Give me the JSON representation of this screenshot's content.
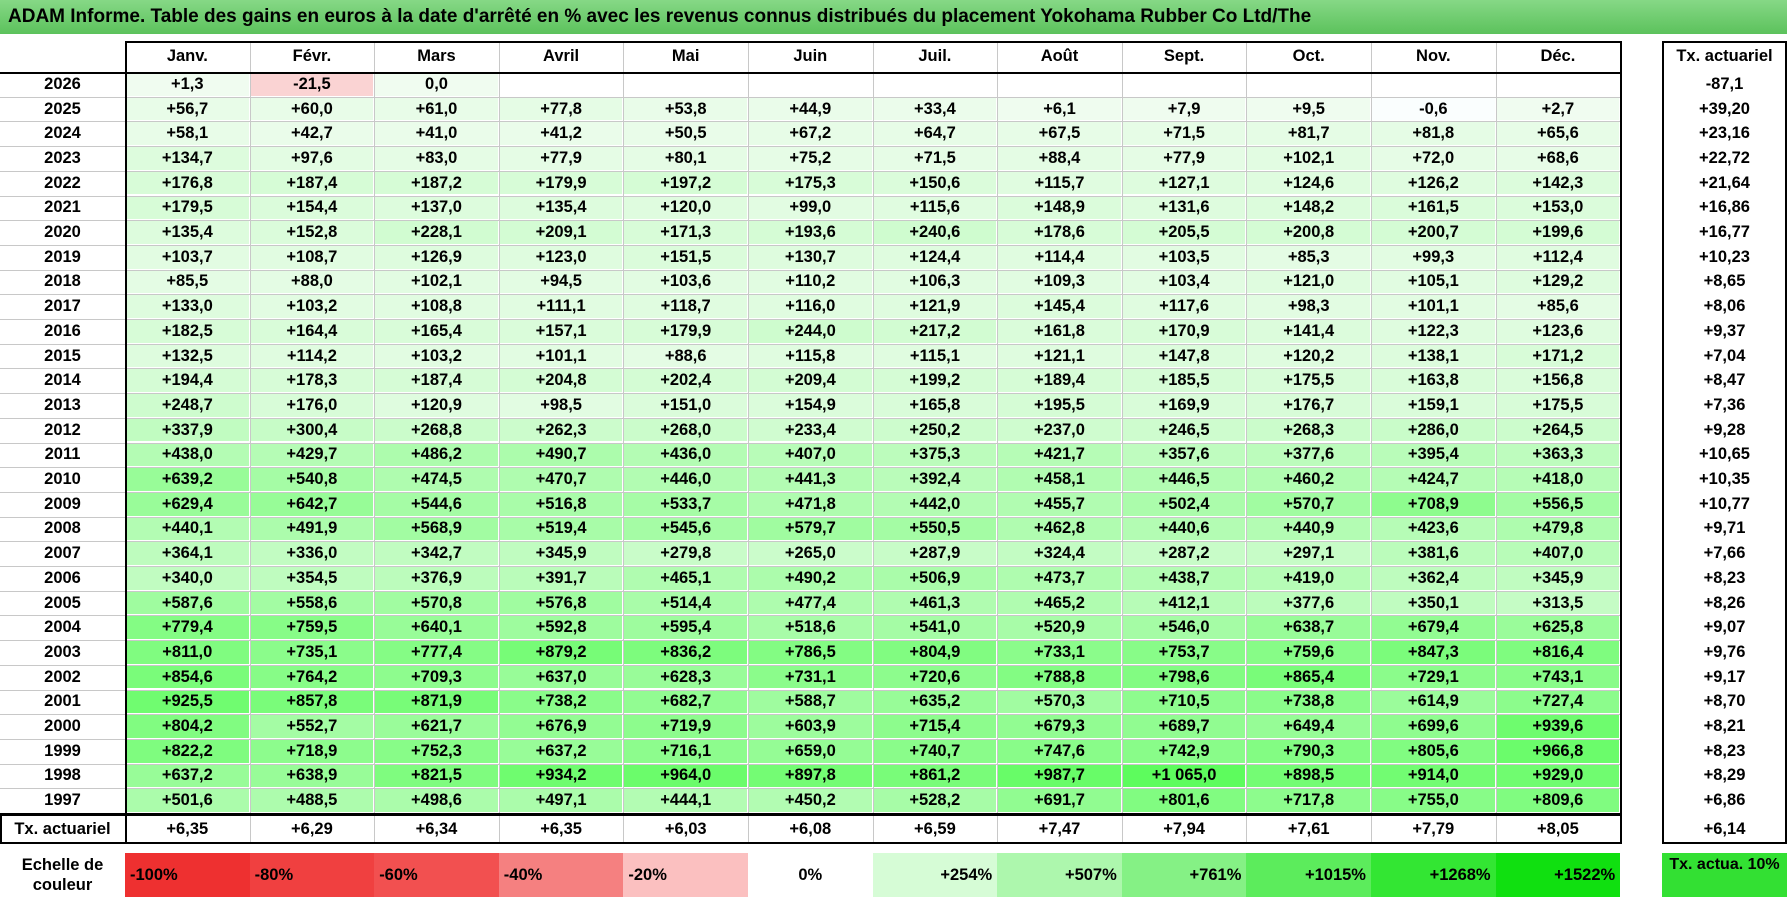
{
  "title": "ADAM Informe. Table des gains en euros à la date d'arrêté en % avec les revenus connus distribués du placement Yokohama Rubber Co Ltd/The",
  "months": [
    "Janv.",
    "Févr.",
    "Mars",
    "Avril",
    "Mai",
    "Juin",
    "Juil.",
    "Août",
    "Sept.",
    "Oct.",
    "Nov.",
    "Déc."
  ],
  "tx_header": "Tx. actuariel",
  "rows": [
    {
      "year": "2026",
      "values": [
        "+1,3",
        "-21,5",
        "0,0",
        "",
        "",
        "",
        "",
        "",
        "",
        "",
        "",
        ""
      ],
      "tx": "-87,1"
    },
    {
      "year": "2025",
      "values": [
        "+56,7",
        "+60,0",
        "+61,0",
        "+77,8",
        "+53,8",
        "+44,9",
        "+33,4",
        "+6,1",
        "+7,9",
        "+9,5",
        "-0,6",
        "+2,7"
      ],
      "tx": "+39,20"
    },
    {
      "year": "2024",
      "values": [
        "+58,1",
        "+42,7",
        "+41,0",
        "+41,2",
        "+50,5",
        "+67,2",
        "+64,7",
        "+67,5",
        "+71,5",
        "+81,7",
        "+81,8",
        "+65,6"
      ],
      "tx": "+23,16"
    },
    {
      "year": "2023",
      "values": [
        "+134,7",
        "+97,6",
        "+83,0",
        "+77,9",
        "+80,1",
        "+75,2",
        "+71,5",
        "+88,4",
        "+77,9",
        "+102,1",
        "+72,0",
        "+68,6"
      ],
      "tx": "+22,72"
    },
    {
      "year": "2022",
      "values": [
        "+176,8",
        "+187,4",
        "+187,2",
        "+179,9",
        "+197,2",
        "+175,3",
        "+150,6",
        "+115,7",
        "+127,1",
        "+124,6",
        "+126,2",
        "+142,3"
      ],
      "tx": "+21,64"
    },
    {
      "year": "2021",
      "values": [
        "+179,5",
        "+154,4",
        "+137,0",
        "+135,4",
        "+120,0",
        "+99,0",
        "+115,6",
        "+148,9",
        "+131,6",
        "+148,2",
        "+161,5",
        "+153,0"
      ],
      "tx": "+16,86"
    },
    {
      "year": "2020",
      "values": [
        "+135,4",
        "+152,8",
        "+228,1",
        "+209,1",
        "+171,3",
        "+193,6",
        "+240,6",
        "+178,6",
        "+205,5",
        "+200,8",
        "+200,7",
        "+199,6"
      ],
      "tx": "+16,77"
    },
    {
      "year": "2019",
      "values": [
        "+103,7",
        "+108,7",
        "+126,9",
        "+123,0",
        "+151,5",
        "+130,7",
        "+124,4",
        "+114,4",
        "+103,5",
        "+85,3",
        "+99,3",
        "+112,4"
      ],
      "tx": "+10,23"
    },
    {
      "year": "2018",
      "values": [
        "+85,5",
        "+88,0",
        "+102,1",
        "+94,5",
        "+103,6",
        "+110,2",
        "+106,3",
        "+109,3",
        "+103,4",
        "+121,0",
        "+105,1",
        "+129,2"
      ],
      "tx": "+8,65"
    },
    {
      "year": "2017",
      "values": [
        "+133,0",
        "+103,2",
        "+108,8",
        "+111,1",
        "+118,7",
        "+116,0",
        "+121,9",
        "+145,4",
        "+117,6",
        "+98,3",
        "+101,1",
        "+85,6"
      ],
      "tx": "+8,06"
    },
    {
      "year": "2016",
      "values": [
        "+182,5",
        "+164,4",
        "+165,4",
        "+157,1",
        "+179,9",
        "+244,0",
        "+217,2",
        "+161,8",
        "+170,9",
        "+141,4",
        "+122,3",
        "+123,6"
      ],
      "tx": "+9,37"
    },
    {
      "year": "2015",
      "values": [
        "+132,5",
        "+114,2",
        "+103,2",
        "+101,1",
        "+88,6",
        "+115,8",
        "+115,1",
        "+121,1",
        "+147,8",
        "+120,2",
        "+138,1",
        "+171,2"
      ],
      "tx": "+7,04"
    },
    {
      "year": "2014",
      "values": [
        "+194,4",
        "+178,3",
        "+187,4",
        "+204,8",
        "+202,4",
        "+209,4",
        "+199,2",
        "+189,4",
        "+185,5",
        "+175,5",
        "+163,8",
        "+156,8"
      ],
      "tx": "+8,47"
    },
    {
      "year": "2013",
      "values": [
        "+248,7",
        "+176,0",
        "+120,9",
        "+98,5",
        "+151,0",
        "+154,9",
        "+165,8",
        "+195,5",
        "+169,9",
        "+176,7",
        "+159,1",
        "+175,5"
      ],
      "tx": "+7,36"
    },
    {
      "year": "2012",
      "values": [
        "+337,9",
        "+300,4",
        "+268,8",
        "+262,3",
        "+268,0",
        "+233,4",
        "+250,2",
        "+237,0",
        "+246,5",
        "+268,3",
        "+286,0",
        "+264,5"
      ],
      "tx": "+9,28"
    },
    {
      "year": "2011",
      "values": [
        "+438,0",
        "+429,7",
        "+486,2",
        "+490,7",
        "+436,0",
        "+407,0",
        "+375,3",
        "+421,7",
        "+357,6",
        "+377,6",
        "+395,4",
        "+363,3"
      ],
      "tx": "+10,65"
    },
    {
      "year": "2010",
      "values": [
        "+639,2",
        "+540,8",
        "+474,5",
        "+470,7",
        "+446,0",
        "+441,3",
        "+392,4",
        "+458,1",
        "+446,5",
        "+460,2",
        "+424,7",
        "+418,0"
      ],
      "tx": "+10,35"
    },
    {
      "year": "2009",
      "values": [
        "+629,4",
        "+642,7",
        "+544,6",
        "+516,8",
        "+533,7",
        "+471,8",
        "+442,0",
        "+455,7",
        "+502,4",
        "+570,7",
        "+708,9",
        "+556,5"
      ],
      "tx": "+10,77"
    },
    {
      "year": "2008",
      "values": [
        "+440,1",
        "+491,9",
        "+568,9",
        "+519,4",
        "+545,6",
        "+579,7",
        "+550,5",
        "+462,8",
        "+440,6",
        "+440,9",
        "+423,6",
        "+479,8"
      ],
      "tx": "+9,71"
    },
    {
      "year": "2007",
      "values": [
        "+364,1",
        "+336,0",
        "+342,7",
        "+345,9",
        "+279,8",
        "+265,0",
        "+287,9",
        "+324,4",
        "+287,2",
        "+297,1",
        "+381,6",
        "+407,0"
      ],
      "tx": "+7,66"
    },
    {
      "year": "2006",
      "values": [
        "+340,0",
        "+354,5",
        "+376,9",
        "+391,7",
        "+465,1",
        "+490,2",
        "+506,9",
        "+473,7",
        "+438,7",
        "+419,0",
        "+362,4",
        "+345,9"
      ],
      "tx": "+8,23"
    },
    {
      "year": "2005",
      "values": [
        "+587,6",
        "+558,6",
        "+570,8",
        "+576,8",
        "+514,4",
        "+477,4",
        "+461,3",
        "+465,2",
        "+412,1",
        "+377,6",
        "+350,1",
        "+313,5"
      ],
      "tx": "+8,26"
    },
    {
      "year": "2004",
      "values": [
        "+779,4",
        "+759,5",
        "+640,1",
        "+592,8",
        "+595,4",
        "+518,6",
        "+541,0",
        "+520,9",
        "+546,0",
        "+638,7",
        "+679,4",
        "+625,8"
      ],
      "tx": "+9,07"
    },
    {
      "year": "2003",
      "values": [
        "+811,0",
        "+735,1",
        "+777,4",
        "+879,2",
        "+836,2",
        "+786,5",
        "+804,9",
        "+733,1",
        "+753,7",
        "+759,6",
        "+847,3",
        "+816,4"
      ],
      "tx": "+9,76"
    },
    {
      "year": "2002",
      "values": [
        "+854,6",
        "+764,2",
        "+709,3",
        "+637,0",
        "+628,3",
        "+731,1",
        "+720,6",
        "+788,8",
        "+798,6",
        "+865,4",
        "+729,1",
        "+743,1"
      ],
      "tx": "+9,17"
    },
    {
      "year": "2001",
      "values": [
        "+925,5",
        "+857,8",
        "+871,9",
        "+738,2",
        "+682,7",
        "+588,7",
        "+635,2",
        "+570,3",
        "+710,5",
        "+738,8",
        "+614,9",
        "+727,4"
      ],
      "tx": "+8,70"
    },
    {
      "year": "2000",
      "values": [
        "+804,2",
        "+552,7",
        "+621,7",
        "+676,9",
        "+719,9",
        "+603,9",
        "+715,4",
        "+679,3",
        "+689,7",
        "+649,4",
        "+699,6",
        "+939,6"
      ],
      "tx": "+8,21"
    },
    {
      "year": "1999",
      "values": [
        "+822,2",
        "+718,9",
        "+752,3",
        "+637,2",
        "+716,1",
        "+659,0",
        "+740,7",
        "+747,6",
        "+742,9",
        "+790,3",
        "+805,6",
        "+966,8"
      ],
      "tx": "+8,23"
    },
    {
      "year": "1998",
      "values": [
        "+637,2",
        "+638,9",
        "+821,5",
        "+934,2",
        "+964,0",
        "+897,8",
        "+861,2",
        "+987,7",
        "+1 065,0",
        "+898,5",
        "+914,0",
        "+929,0"
      ],
      "tx": "+8,29"
    },
    {
      "year": "1997",
      "values": [
        "+501,6",
        "+488,5",
        "+498,6",
        "+497,1",
        "+444,1",
        "+450,2",
        "+528,2",
        "+691,7",
        "+801,6",
        "+717,8",
        "+755,0",
        "+809,6"
      ],
      "tx": "+6,86"
    }
  ],
  "footer": {
    "label": "Tx. actuariel",
    "values": [
      "+6,35",
      "+6,29",
      "+6,34",
      "+6,35",
      "+6,03",
      "+6,08",
      "+6,59",
      "+7,47",
      "+7,94",
      "+7,61",
      "+7,79",
      "+8,05"
    ],
    "tx": "+6,14"
  },
  "legend": {
    "label": "Echelle de couleur",
    "items": [
      {
        "text": "-100%",
        "color": "#ee3030",
        "align": "left"
      },
      {
        "text": "-80%",
        "color": "#f04040",
        "align": "left"
      },
      {
        "text": "-60%",
        "color": "#f25050",
        "align": "left"
      },
      {
        "text": "-40%",
        "color": "#f58080",
        "align": "left"
      },
      {
        "text": "-20%",
        "color": "#fbc0c0",
        "align": "left"
      },
      {
        "text": "0%",
        "color": "#ffffff",
        "align": "center"
      },
      {
        "text": "+254%",
        "color": "#d6fcd6",
        "align": "right"
      },
      {
        "text": "+507%",
        "color": "#adf7ad",
        "align": "right"
      },
      {
        "text": "+761%",
        "color": "#85f185",
        "align": "right"
      },
      {
        "text": "+1015%",
        "color": "#5cec5c",
        "align": "right"
      },
      {
        "text": "+1268%",
        "color": "#33e633",
        "align": "right"
      },
      {
        "text": "+1522%",
        "color": "#10e010",
        "align": "right"
      }
    ],
    "tx_label": "Tx. actua. 10%"
  }
}
